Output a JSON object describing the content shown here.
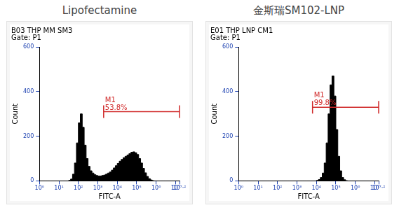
{
  "chart_data": [
    {
      "type": "histogram",
      "title": "Lipofectamine",
      "subtitle": [
        "B03 THP MM SM3",
        "Gate: P1"
      ],
      "x_label": "FITC-A",
      "y_label": "Count",
      "log": "x",
      "grid": false,
      "color": "#000000",
      "xlim": [
        1,
        15850000
      ],
      "xticks": [
        {
          "value": 1,
          "label": "10⁰"
        },
        {
          "value": 10,
          "label": "10¹"
        },
        {
          "value": 100,
          "label": "10²"
        },
        {
          "value": 1000,
          "label": "10³"
        },
        {
          "value": 10000,
          "label": "10⁴"
        },
        {
          "value": 100000,
          "label": "10⁵"
        },
        {
          "value": 1000000,
          "label": "10⁶"
        },
        {
          "value": 10000000,
          "label": "10⁷"
        },
        {
          "value": 15850000,
          "label": "10⁷·²"
        }
      ],
      "ylim": [
        0,
        600
      ],
      "yticks": [
        0,
        200,
        400,
        600
      ],
      "bins": [
        1,
        1.259,
        1.585,
        1.995,
        2.512,
        3.162,
        3.981,
        5.012,
        6.31,
        7.943,
        10,
        12.59,
        15.85,
        19.95,
        25.12,
        31.62,
        39.81,
        50.12,
        63.1,
        79.43,
        100,
        125.9,
        158.5,
        199.5,
        251.2,
        316.2,
        398.1,
        501.2,
        631,
        794.3,
        1000,
        1259,
        1585,
        1995,
        2512,
        3162,
        3981,
        5012,
        6310,
        7943,
        10000,
        12590,
        15850,
        19950,
        25120,
        31620,
        39810,
        50120,
        63100,
        79430,
        100000,
        125900,
        158500,
        199500,
        251200,
        316200,
        398100,
        501200,
        631000,
        794300,
        1000000,
        1259000,
        1585000,
        1995000,
        2512000,
        3162000,
        3981000,
        5012000,
        6310000,
        7943000,
        10000000,
        12590000,
        15850000
      ],
      "counts": [
        0,
        0,
        0,
        0,
        0,
        0,
        0,
        0,
        0,
        0,
        0,
        0,
        0,
        0,
        0,
        2,
        8,
        30,
        80,
        170,
        260,
        300,
        240,
        160,
        100,
        65,
        45,
        35,
        28,
        24,
        22,
        22,
        24,
        26,
        30,
        35,
        40,
        48,
        58,
        68,
        78,
        88,
        96,
        104,
        110,
        116,
        122,
        128,
        130,
        126,
        118,
        100,
        80,
        56,
        36,
        20,
        10,
        4,
        1,
        0,
        0,
        0,
        0,
        0,
        0,
        0,
        0,
        0,
        0,
        0,
        0,
        0
      ],
      "annotations": [
        {
          "text": "M1",
          "label": "53.8%",
          "x": [
            1995,
            15850000
          ],
          "y": 310,
          "color": "#d02828"
        }
      ]
    },
    {
      "type": "histogram",
      "title": "金斯瑞SM102-LNP",
      "subtitle": [
        "E01 THP LNP CM1",
        "Gate: P1"
      ],
      "x_label": "FITC-A",
      "y_label": "Count",
      "log": "x",
      "grid": false,
      "color": "#000000",
      "xlim": [
        1,
        15850000
      ],
      "xticks": [
        {
          "value": 1,
          "label": "10⁰"
        },
        {
          "value": 10,
          "label": "10¹"
        },
        {
          "value": 100,
          "label": "10²"
        },
        {
          "value": 1000,
          "label": "10³"
        },
        {
          "value": 10000,
          "label": "10⁴"
        },
        {
          "value": 100000,
          "label": "10⁵"
        },
        {
          "value": 1000000,
          "label": "10⁶"
        },
        {
          "value": 10000000,
          "label": "10⁷"
        },
        {
          "value": 15850000,
          "label": "10⁷·²"
        }
      ],
      "ylim": [
        0,
        600
      ],
      "yticks": [
        0,
        200,
        400,
        600
      ],
      "bins": [
        1,
        1.259,
        1.585,
        1.995,
        2.512,
        3.162,
        3.981,
        5.012,
        6.31,
        7.943,
        10,
        12.59,
        15.85,
        19.95,
        25.12,
        31.62,
        39.81,
        50.12,
        63.1,
        79.43,
        100,
        125.9,
        158.5,
        199.5,
        251.2,
        316.2,
        398.1,
        501.2,
        631,
        794.3,
        1000,
        1259,
        1585,
        1995,
        2512,
        3162,
        3981,
        5012,
        6310,
        7943,
        10000,
        12590,
        15850,
        19950,
        25120,
        31620,
        39810,
        50120,
        63100,
        79430,
        100000,
        125900,
        158500,
        199500,
        251200,
        316200,
        398100,
        501200,
        631000,
        794300,
        1000000,
        1259000,
        1585000,
        1995000,
        2512000,
        3162000,
        3981000,
        5012000,
        6310000,
        7943000,
        10000000,
        12590000,
        15850000
      ],
      "counts": [
        0,
        0,
        0,
        0,
        0,
        0,
        0,
        0,
        0,
        0,
        0,
        0,
        0,
        0,
        0,
        0,
        0,
        0,
        0,
        0,
        0,
        0,
        0,
        0,
        0,
        0,
        0,
        0,
        0,
        0,
        0,
        0,
        0,
        0,
        0,
        0,
        0,
        0,
        0,
        0,
        2,
        6,
        15,
        35,
        80,
        170,
        300,
        430,
        470,
        380,
        230,
        110,
        45,
        15,
        5,
        1,
        0,
        0,
        0,
        0,
        0,
        0,
        0,
        0,
        0,
        0,
        0,
        0,
        0,
        0,
        0,
        0
      ],
      "annotations": [
        {
          "text": "M1",
          "label": "99.8%",
          "x": [
            6310,
            15850000
          ],
          "y": 330,
          "color": "#d02828"
        }
      ]
    }
  ]
}
